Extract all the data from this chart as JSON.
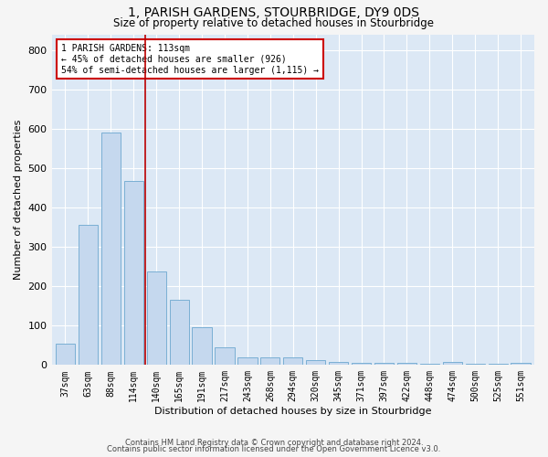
{
  "title": "1, PARISH GARDENS, STOURBRIDGE, DY9 0DS",
  "subtitle": "Size of property relative to detached houses in Stourbridge",
  "xlabel": "Distribution of detached houses by size in Stourbridge",
  "ylabel": "Number of detached properties",
  "bar_color": "#c5d8ee",
  "bar_edge_color": "#7aafd4",
  "background_color": "#dce8f5",
  "grid_color": "#ffffff",
  "categories": [
    "37sqm",
    "63sqm",
    "88sqm",
    "114sqm",
    "140sqm",
    "165sqm",
    "191sqm",
    "217sqm",
    "243sqm",
    "268sqm",
    "294sqm",
    "320sqm",
    "345sqm",
    "371sqm",
    "397sqm",
    "422sqm",
    "448sqm",
    "474sqm",
    "500sqm",
    "525sqm",
    "551sqm"
  ],
  "values": [
    55,
    355,
    590,
    467,
    237,
    165,
    95,
    44,
    20,
    19,
    19,
    13,
    8,
    5,
    5,
    5,
    2,
    8,
    2,
    4,
    5
  ],
  "vline_x": 3.5,
  "vline_color": "#bb0000",
  "annotation_text": "1 PARISH GARDENS: 113sqm\n← 45% of detached houses are smaller (926)\n54% of semi-detached houses are larger (1,115) →",
  "annotation_box_color": "#ffffff",
  "annotation_box_edge": "#cc0000",
  "ylim": [
    0,
    840
  ],
  "yticks": [
    0,
    100,
    200,
    300,
    400,
    500,
    600,
    700,
    800
  ],
  "footer1": "Contains HM Land Registry data © Crown copyright and database right 2024.",
  "footer2": "Contains public sector information licensed under the Open Government Licence v3.0."
}
